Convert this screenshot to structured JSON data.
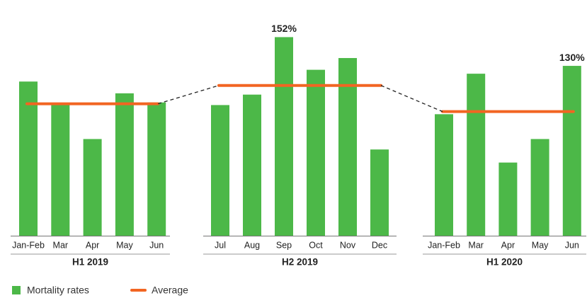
{
  "chart_data": {
    "type": "bar",
    "ylim": [
      0,
      175
    ],
    "legend": [
      {
        "name": "Mortality rates",
        "color": "#4cb848"
      },
      {
        "name": "Average",
        "color": "#f26522"
      }
    ],
    "groups": [
      {
        "label": "H1 2019",
        "categories": [
          "Jan-Feb",
          "Mar",
          "Apr",
          "May",
          "Jun"
        ],
        "values": [
          118,
          101,
          74,
          109,
          102
        ],
        "value_labels": [
          null,
          null,
          null,
          null,
          null
        ],
        "average": 101
      },
      {
        "label": "H2 2019",
        "categories": [
          "Jul",
          "Aug",
          "Sep",
          "Oct",
          "Nov",
          "Dec"
        ],
        "values": [
          100,
          108,
          152,
          127,
          136,
          66
        ],
        "value_labels": [
          null,
          null,
          "152%",
          null,
          null,
          null
        ],
        "average": 115
      },
      {
        "label": "H1 2020",
        "categories": [
          "Jan-Feb",
          "Mar",
          "Apr",
          "May",
          "Jun"
        ],
        "values": [
          93,
          124,
          56,
          74,
          130
        ],
        "value_labels": [
          null,
          null,
          null,
          null,
          "130%"
        ],
        "average": 95
      }
    ]
  }
}
